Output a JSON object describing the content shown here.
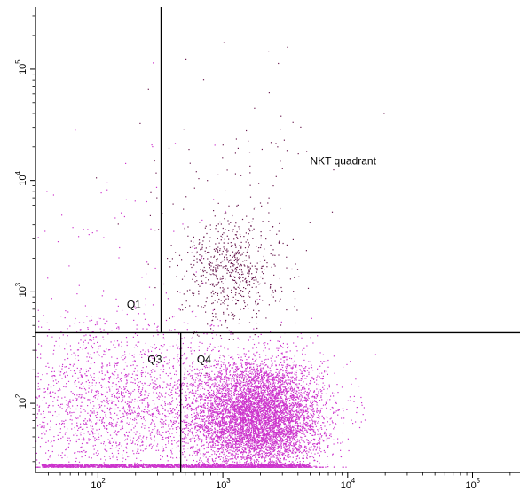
{
  "chart_data": {
    "type": "scatter",
    "title": "",
    "xlabel": "",
    "ylabel": "",
    "x_scale": "log",
    "y_scale": "log",
    "xlim": [
      31.6,
      240000
    ],
    "ylim": [
      24,
      360000
    ],
    "x_tick_labels": [
      {
        "value": 100,
        "base": "10",
        "exp": "2"
      },
      {
        "value": 1000,
        "base": "10",
        "exp": "3"
      },
      {
        "value": 10000,
        "base": "10",
        "exp": "4"
      },
      {
        "value": 100000,
        "base": "10",
        "exp": "5"
      }
    ],
    "y_tick_labels": [
      {
        "value": 100,
        "base": "10",
        "exp": "2"
      },
      {
        "value": 1000,
        "base": "10",
        "exp": "3"
      },
      {
        "value": 10000,
        "base": "10",
        "exp": "4"
      },
      {
        "value": 100000,
        "base": "10",
        "exp": "5"
      }
    ],
    "gates": {
      "horizontal_y": 430,
      "upper_vertical_x": 320,
      "lower_vertical_x": 460
    },
    "annotations": [
      {
        "text": "NKT quadrant",
        "x": 5000,
        "y": 14000
      },
      {
        "text": "Q1",
        "x": 170,
        "y": 720
      },
      {
        "text": "Q3",
        "x": 250,
        "y": 230
      },
      {
        "text": "Q4",
        "x": 620,
        "y": 230
      }
    ],
    "populations": [
      {
        "name": "",
        "color": "#cc33cc",
        "center": [
          1900,
          75
        ],
        "spread": [
          0.26,
          0.26
        ],
        "count": 7000
      },
      {
        "name": "",
        "color": "#cc33cc",
        "center": [
          110,
          90
        ],
        "spread": [
          0.45,
          0.4
        ],
        "count": 1500
      },
      {
        "name": "",
        "color": "#cc33cc",
        "center": [
          320,
          110
        ],
        "spread": [
          0.35,
          0.35
        ],
        "count": 700
      },
      {
        "name": "",
        "color": "#cc33cc",
        "center": [
          150,
          3000
        ],
        "spread": [
          0.4,
          0.6
        ],
        "count": 60
      },
      {
        "name": "",
        "color": "#6a1b50",
        "center": [
          1200,
          1600
        ],
        "spread": [
          0.2,
          0.25
        ],
        "count": 650
      },
      {
        "name": "",
        "color": "#6a1b50",
        "center": [
          1500,
          10000
        ],
        "spread": [
          0.4,
          0.55
        ],
        "count": 90
      }
    ],
    "floor_band": {
      "y": 27,
      "x_range": [
        35,
        5000
      ],
      "color": "#cc33cc"
    },
    "colors": {
      "magenta_events": "#cc33cc",
      "dark_events": "#6a1b50",
      "gate": "#000000"
    },
    "grid": false
  }
}
